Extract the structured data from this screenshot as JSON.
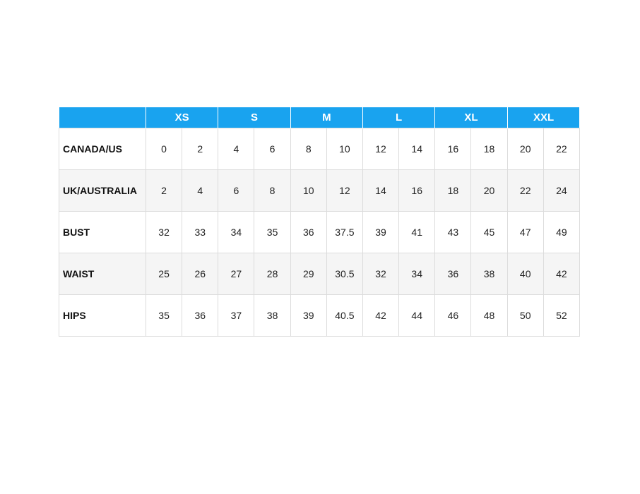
{
  "table": {
    "header": [
      "XS",
      "S",
      "M",
      "L",
      "XL",
      "XXL"
    ],
    "rows": [
      {
        "label": "CANADA/US",
        "values": [
          0,
          2,
          4,
          6,
          8,
          10,
          12,
          14,
          16,
          18,
          20,
          22
        ]
      },
      {
        "label": "UK/AUSTRALIA",
        "values": [
          2,
          4,
          6,
          8,
          10,
          12,
          14,
          16,
          18,
          20,
          22,
          24
        ]
      },
      {
        "label": "BUST",
        "values": [
          32,
          33,
          34,
          35,
          36,
          37.5,
          39,
          41,
          43,
          45,
          47,
          49
        ]
      },
      {
        "label": "WAIST",
        "values": [
          25,
          26,
          27,
          28,
          29,
          30.5,
          32,
          34,
          36,
          38,
          40,
          42
        ]
      },
      {
        "label": "HIPS",
        "values": [
          35,
          36,
          37,
          38,
          39,
          40.5,
          42,
          44,
          46,
          48,
          50,
          52
        ]
      }
    ]
  }
}
